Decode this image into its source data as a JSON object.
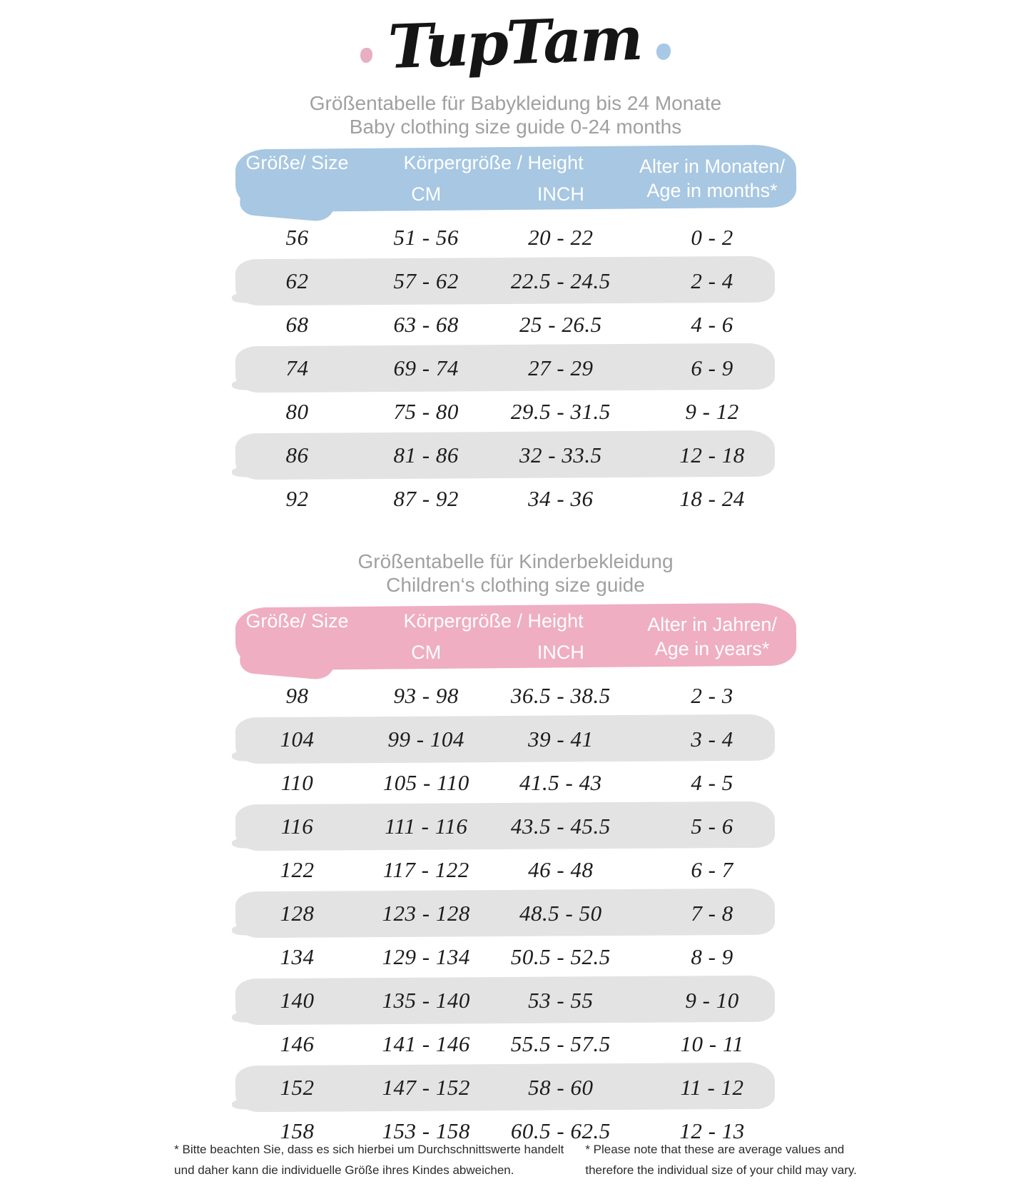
{
  "logo": {
    "text": "TupTam"
  },
  "colors": {
    "baby_header": "#a7c7e2",
    "children_header": "#efaec2",
    "stripe": "#e3e3e3",
    "title_text": "#a0a0a0",
    "hand_text": "#1c1c1c",
    "logo_dot_left": "#e8afc2",
    "logo_dot_right": "#a9c8e6"
  },
  "chart_data": [
    {
      "type": "table",
      "title": "Größentabelle für Babykleidung bis 24 Monate",
      "subtitle": "Baby clothing size guide 0-24 months",
      "header": {
        "size": "Größe/ Size",
        "height": "Körpergröße / Height",
        "cm": "CM",
        "inch": "INCH",
        "age_line1": "Alter in Monaten/",
        "age_line2": "Age in months*"
      },
      "columns": [
        "Größe/ Size",
        "Körpergröße / Height CM",
        "Körpergröße / Height INCH",
        "Alter in Monaten/ Age in months*"
      ],
      "rows": [
        [
          "56",
          "51 - 56",
          "20 - 22",
          "0 - 2"
        ],
        [
          "62",
          "57 - 62",
          "22.5 - 24.5",
          "2 - 4"
        ],
        [
          "68",
          "63 - 68",
          "25 - 26.5",
          "4 - 6"
        ],
        [
          "74",
          "69 - 74",
          "27 - 29",
          "6 - 9"
        ],
        [
          "80",
          "75 - 80",
          "29.5 - 31.5",
          "9 - 12"
        ],
        [
          "86",
          "81 - 86",
          "32 - 33.5",
          "12 - 18"
        ],
        [
          "92",
          "87 - 92",
          "34 - 36",
          "18 - 24"
        ]
      ],
      "striped_row_indices": [
        1,
        3,
        5
      ]
    },
    {
      "type": "table",
      "title": "Größentabelle für Kinderbekleidung",
      "subtitle": "Children‘s clothing size guide",
      "header": {
        "size": "Größe/ Size",
        "height": "Körpergröße / Height",
        "cm": "CM",
        "inch": "INCH",
        "age_line1": "Alter in Jahren/",
        "age_line2": "Age in years*"
      },
      "columns": [
        "Größe/ Size",
        "Körpergröße / Height CM",
        "Körpergröße / Height INCH",
        "Alter in Jahren/ Age in years*"
      ],
      "rows": [
        [
          "98",
          "93 - 98",
          "36.5 - 38.5",
          "2 - 3"
        ],
        [
          "104",
          "99 - 104",
          "39 - 41",
          "3 - 4"
        ],
        [
          "110",
          "105 - 110",
          "41.5 - 43",
          "4 - 5"
        ],
        [
          "116",
          "111 - 116",
          "43.5 - 45.5",
          "5 - 6"
        ],
        [
          "122",
          "117 - 122",
          "46 - 48",
          "6 - 7"
        ],
        [
          "128",
          "123 - 128",
          "48.5 - 50",
          "7 - 8"
        ],
        [
          "134",
          "129 - 134",
          "50.5 - 52.5",
          "8 - 9"
        ],
        [
          "140",
          "135 - 140",
          "53 - 55",
          "9 - 10"
        ],
        [
          "146",
          "141 - 146",
          "55.5 - 57.5",
          "10 - 11"
        ],
        [
          "152",
          "147 - 152",
          "58 - 60",
          "11 - 12"
        ],
        [
          "158",
          "153 - 158",
          "60.5 - 62.5",
          "12 - 13"
        ]
      ],
      "striped_row_indices": [
        1,
        3,
        5,
        7,
        9
      ]
    }
  ],
  "footnotes": {
    "de_line1": "* Bitte beachten Sie, dass es sich hierbei um Durchschnittswerte handelt",
    "de_line2": "und daher kann die individuelle Größe ihres Kindes abweichen.",
    "en_line1": "* Please note that these are average values and",
    "en_line2": "therefore the individual size of your child may vary."
  }
}
